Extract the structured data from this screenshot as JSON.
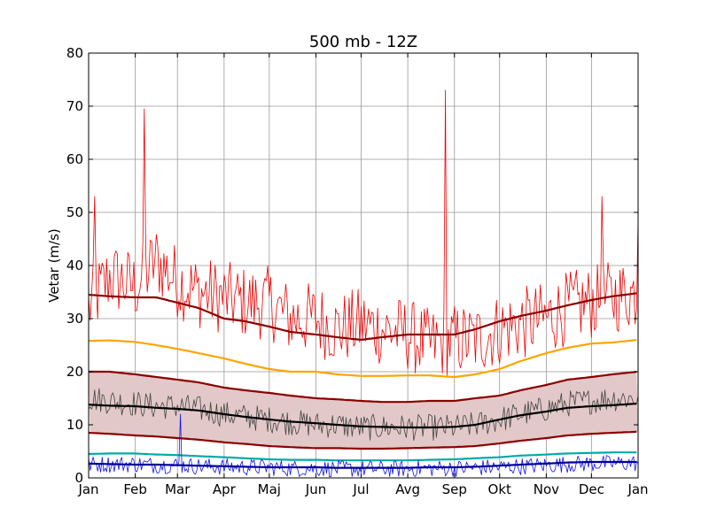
{
  "chart_data": {
    "type": "line",
    "title": "500 mb - 12Z",
    "xlabel": "",
    "ylabel": "Vetar (m/s)",
    "xlim": [
      "Jan",
      "Jan"
    ],
    "ylim": [
      0,
      80
    ],
    "x_ticks": [
      "Jan",
      "Feb",
      "Mar",
      "Apr",
      "Maj",
      "Jun",
      "Jul",
      "Avg",
      "Sep",
      "Okt",
      "Nov",
      "Dec",
      "Jan"
    ],
    "y_ticks": [
      0,
      10,
      20,
      30,
      40,
      50,
      60,
      70,
      80
    ],
    "grid": true,
    "x_day_of_year": [
      1,
      15,
      32,
      46,
      60,
      74,
      91,
      105,
      121,
      135,
      152,
      166,
      182,
      196,
      213,
      227,
      244,
      258,
      274,
      288,
      305,
      319,
      335,
      349,
      366
    ],
    "band": {
      "name": "",
      "lower_series": 4,
      "upper_series": 2,
      "color": "#e2c8c8"
    },
    "series": [
      {
        "name": "",
        "role": "daily maximum",
        "color": "#ee0000",
        "stroke": 0.8,
        "noisy": true,
        "values": [
          32,
          38,
          36,
          41,
          37,
          35,
          34,
          33,
          33,
          30,
          30,
          28,
          29,
          28,
          27,
          25,
          26,
          26,
          28,
          29,
          30,
          32,
          33,
          34,
          35
        ],
        "spikes": [
          [
            5,
            53
          ],
          [
            38,
            69.5
          ],
          [
            238,
            73
          ],
          [
            342,
            53
          ],
          [
            366,
            49
          ]
        ]
      },
      {
        "name": "",
        "role": "mean maximum",
        "color": "#8b0000",
        "stroke": 2.2,
        "values": [
          34.5,
          34.2,
          34,
          34,
          33,
          32,
          30,
          29.5,
          28.5,
          27.5,
          27,
          26.5,
          26,
          26.5,
          27,
          27,
          27,
          28,
          29.5,
          30.5,
          31.5,
          32.5,
          33.5,
          34.2,
          34.8
        ]
      },
      {
        "name": "",
        "role": "upper band",
        "color": "#8b0000",
        "stroke": 2.2,
        "values": [
          20,
          20,
          19.5,
          19,
          18.5,
          18,
          17,
          16.5,
          16,
          15.5,
          15,
          14.8,
          14.5,
          14.3,
          14.3,
          14.5,
          14.5,
          15,
          15.5,
          16.5,
          17.5,
          18.5,
          19,
          19.5,
          20
        ]
      },
      {
        "name": "",
        "role": "daily values",
        "color": "#444444",
        "stroke": 0.8,
        "noisy": true,
        "values": [
          15,
          14.5,
          14,
          13.5,
          13.5,
          13,
          12,
          11.5,
          11,
          10.5,
          10,
          10,
          9.5,
          9.5,
          9.5,
          9.5,
          9.5,
          10,
          11,
          12,
          13,
          14,
          14.5,
          15,
          15
        ]
      },
      {
        "name": "",
        "role": "lower band",
        "color": "#8b0000",
        "stroke": 2.2,
        "values": [
          8.5,
          8.3,
          8,
          7.8,
          7.5,
          7.2,
          6.7,
          6.4,
          6,
          5.8,
          5.6,
          5.6,
          5.5,
          5.5,
          5.6,
          5.7,
          5.8,
          6,
          6.5,
          7,
          7.5,
          8,
          8.3,
          8.5,
          8.7
        ]
      },
      {
        "name": "",
        "role": "mean",
        "color": "#000000",
        "stroke": 2.2,
        "values": [
          13.8,
          13.6,
          13.5,
          13.2,
          13,
          12.7,
          12,
          11.5,
          11,
          10.6,
          10.3,
          10,
          9.7,
          9.6,
          9.5,
          9.5,
          9.6,
          10,
          11,
          11.8,
          12.5,
          13.2,
          13.5,
          13.7,
          14
        ]
      },
      {
        "name": "",
        "role": "orange line",
        "color": "#ffa500",
        "stroke": 2.2,
        "values": [
          25.8,
          25.9,
          25.6,
          25,
          24.3,
          23.5,
          22.5,
          21.5,
          20.5,
          20,
          20,
          19.5,
          19.2,
          19.2,
          19.3,
          19.3,
          19,
          19.5,
          20.5,
          22,
          23.5,
          24.5,
          25.3,
          25.5,
          26
        ]
      },
      {
        "name": "",
        "role": "cyan line",
        "color": "#00aaaa",
        "stroke": 2.2,
        "values": [
          4.5,
          4.6,
          4.6,
          4.4,
          4.3,
          4.1,
          3.9,
          3.7,
          3.5,
          3.4,
          3.4,
          3.3,
          3.3,
          3.3,
          3.3,
          3.4,
          3.5,
          3.7,
          3.9,
          4.2,
          4.4,
          4.6,
          4.7,
          4.8,
          4.8
        ]
      },
      {
        "name": "",
        "role": "daily minimum",
        "color": "#1111ee",
        "stroke": 0.8,
        "noisy": true,
        "values": [
          2.5,
          2.6,
          2.6,
          2.4,
          2.4,
          2.2,
          2.1,
          2,
          2,
          1.8,
          1.8,
          1.7,
          1.7,
          1.7,
          1.7,
          1.8,
          1.8,
          1.9,
          2,
          2.2,
          2.4,
          2.6,
          2.7,
          2.7,
          2.8
        ],
        "spikes": [
          [
            62,
            12
          ]
        ]
      },
      {
        "name": "",
        "role": "mean minimum",
        "color": "#000099",
        "stroke": 2.2,
        "values": [
          2.7,
          2.6,
          2.5,
          2.5,
          2.4,
          2.3,
          2.2,
          2.1,
          2,
          2,
          2,
          1.9,
          1.9,
          1.9,
          1.9,
          2,
          2,
          2.1,
          2.3,
          2.5,
          2.7,
          2.9,
          3,
          3,
          3
        ]
      }
    ]
  }
}
